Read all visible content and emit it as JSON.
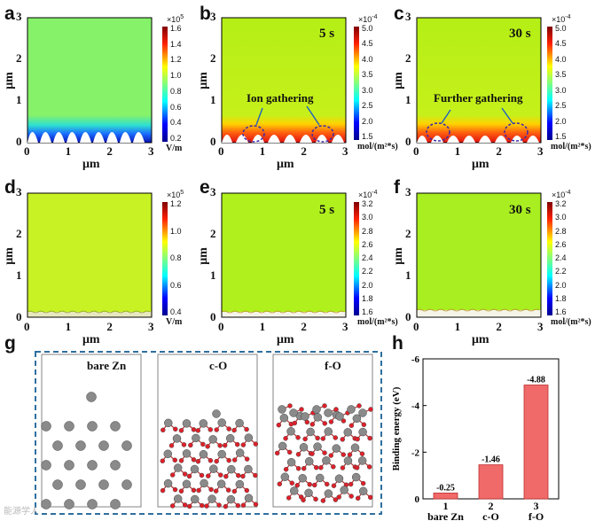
{
  "panel_letters": [
    "a",
    "b",
    "c",
    "d",
    "e",
    "f",
    "g",
    "h"
  ],
  "axis": {
    "unit": "μm",
    "xticks": [
      "0",
      "1",
      "2",
      "3"
    ],
    "yticks": [
      "0",
      "1",
      "2",
      "3"
    ]
  },
  "top_row": {
    "a": {
      "colorbar_ticks": [
        "1.6",
        "1.4",
        "1.2",
        "1.0",
        "0.8",
        "0.6",
        "0.4",
        "0.2"
      ],
      "colorbar_unit": "V/m",
      "colorbar_exp": "×10",
      "colorbar_exp_power": "5"
    },
    "b": {
      "time": "5 s",
      "annotation": "Ion gathering",
      "colorbar_ticks": [
        "5.0",
        "4.5",
        "4.0",
        "3.5",
        "3.0",
        "2.5",
        "2.0",
        "1.5"
      ],
      "colorbar_unit": "mol/(m²*s)",
      "colorbar_exp": "×10",
      "colorbar_exp_power": "-4"
    },
    "c": {
      "time": "30 s",
      "annotation": "Further gathering",
      "colorbar_ticks": [
        "5.0",
        "4.5",
        "4.0",
        "3.5",
        "3.0",
        "2.5",
        "2.0",
        "1.5"
      ],
      "colorbar_unit": "mol/(m²*s)",
      "colorbar_exp": "×10",
      "colorbar_exp_power": "-4"
    }
  },
  "mid_row": {
    "d": {
      "colorbar_ticks": [
        "1.2",
        "1.0",
        "0.8",
        "0.6",
        "0.4"
      ],
      "colorbar_unit": "V/m",
      "colorbar_exp": "×10",
      "colorbar_exp_power": "5"
    },
    "e": {
      "time": "5 s",
      "colorbar_ticks": [
        "3.2",
        "3.0",
        "2.8",
        "2.6",
        "2.4",
        "2.2",
        "2.0",
        "1.8",
        "1.6"
      ],
      "colorbar_unit": "mol/(m²*s)",
      "colorbar_exp": "×10",
      "colorbar_exp_power": "-4"
    },
    "f": {
      "time": "30 s",
      "colorbar_ticks": [
        "3.2",
        "3.0",
        "2.8",
        "2.6",
        "2.4",
        "2.2",
        "2.0",
        "1.8",
        "1.6"
      ],
      "colorbar_unit": "mol/(m²*s)",
      "colorbar_exp": "×10",
      "colorbar_exp_power": "-4"
    }
  },
  "structures": {
    "labels": [
      "bare Zn",
      "c-O",
      "f-O"
    ],
    "colors": {
      "zn": "#8a8a8a",
      "o": "#e0202a",
      "frame": "#2f6f9f"
    }
  },
  "chart_data": {
    "type": "bar",
    "categories": [
      "1",
      "2",
      "3"
    ],
    "category_names": [
      "bare Zn",
      "c-O",
      "f-O"
    ],
    "values": [
      -0.25,
      -1.46,
      -4.88
    ],
    "value_labels": [
      "-0.25",
      "-1.46",
      "-4.88"
    ],
    "ylabel": "Binding energy (eV)",
    "ylim": [
      0,
      -6
    ],
    "yticks": [
      "0",
      "-2",
      "-4",
      "-6"
    ],
    "bar_color": "#f06a6a"
  },
  "watermark": "能源学人"
}
